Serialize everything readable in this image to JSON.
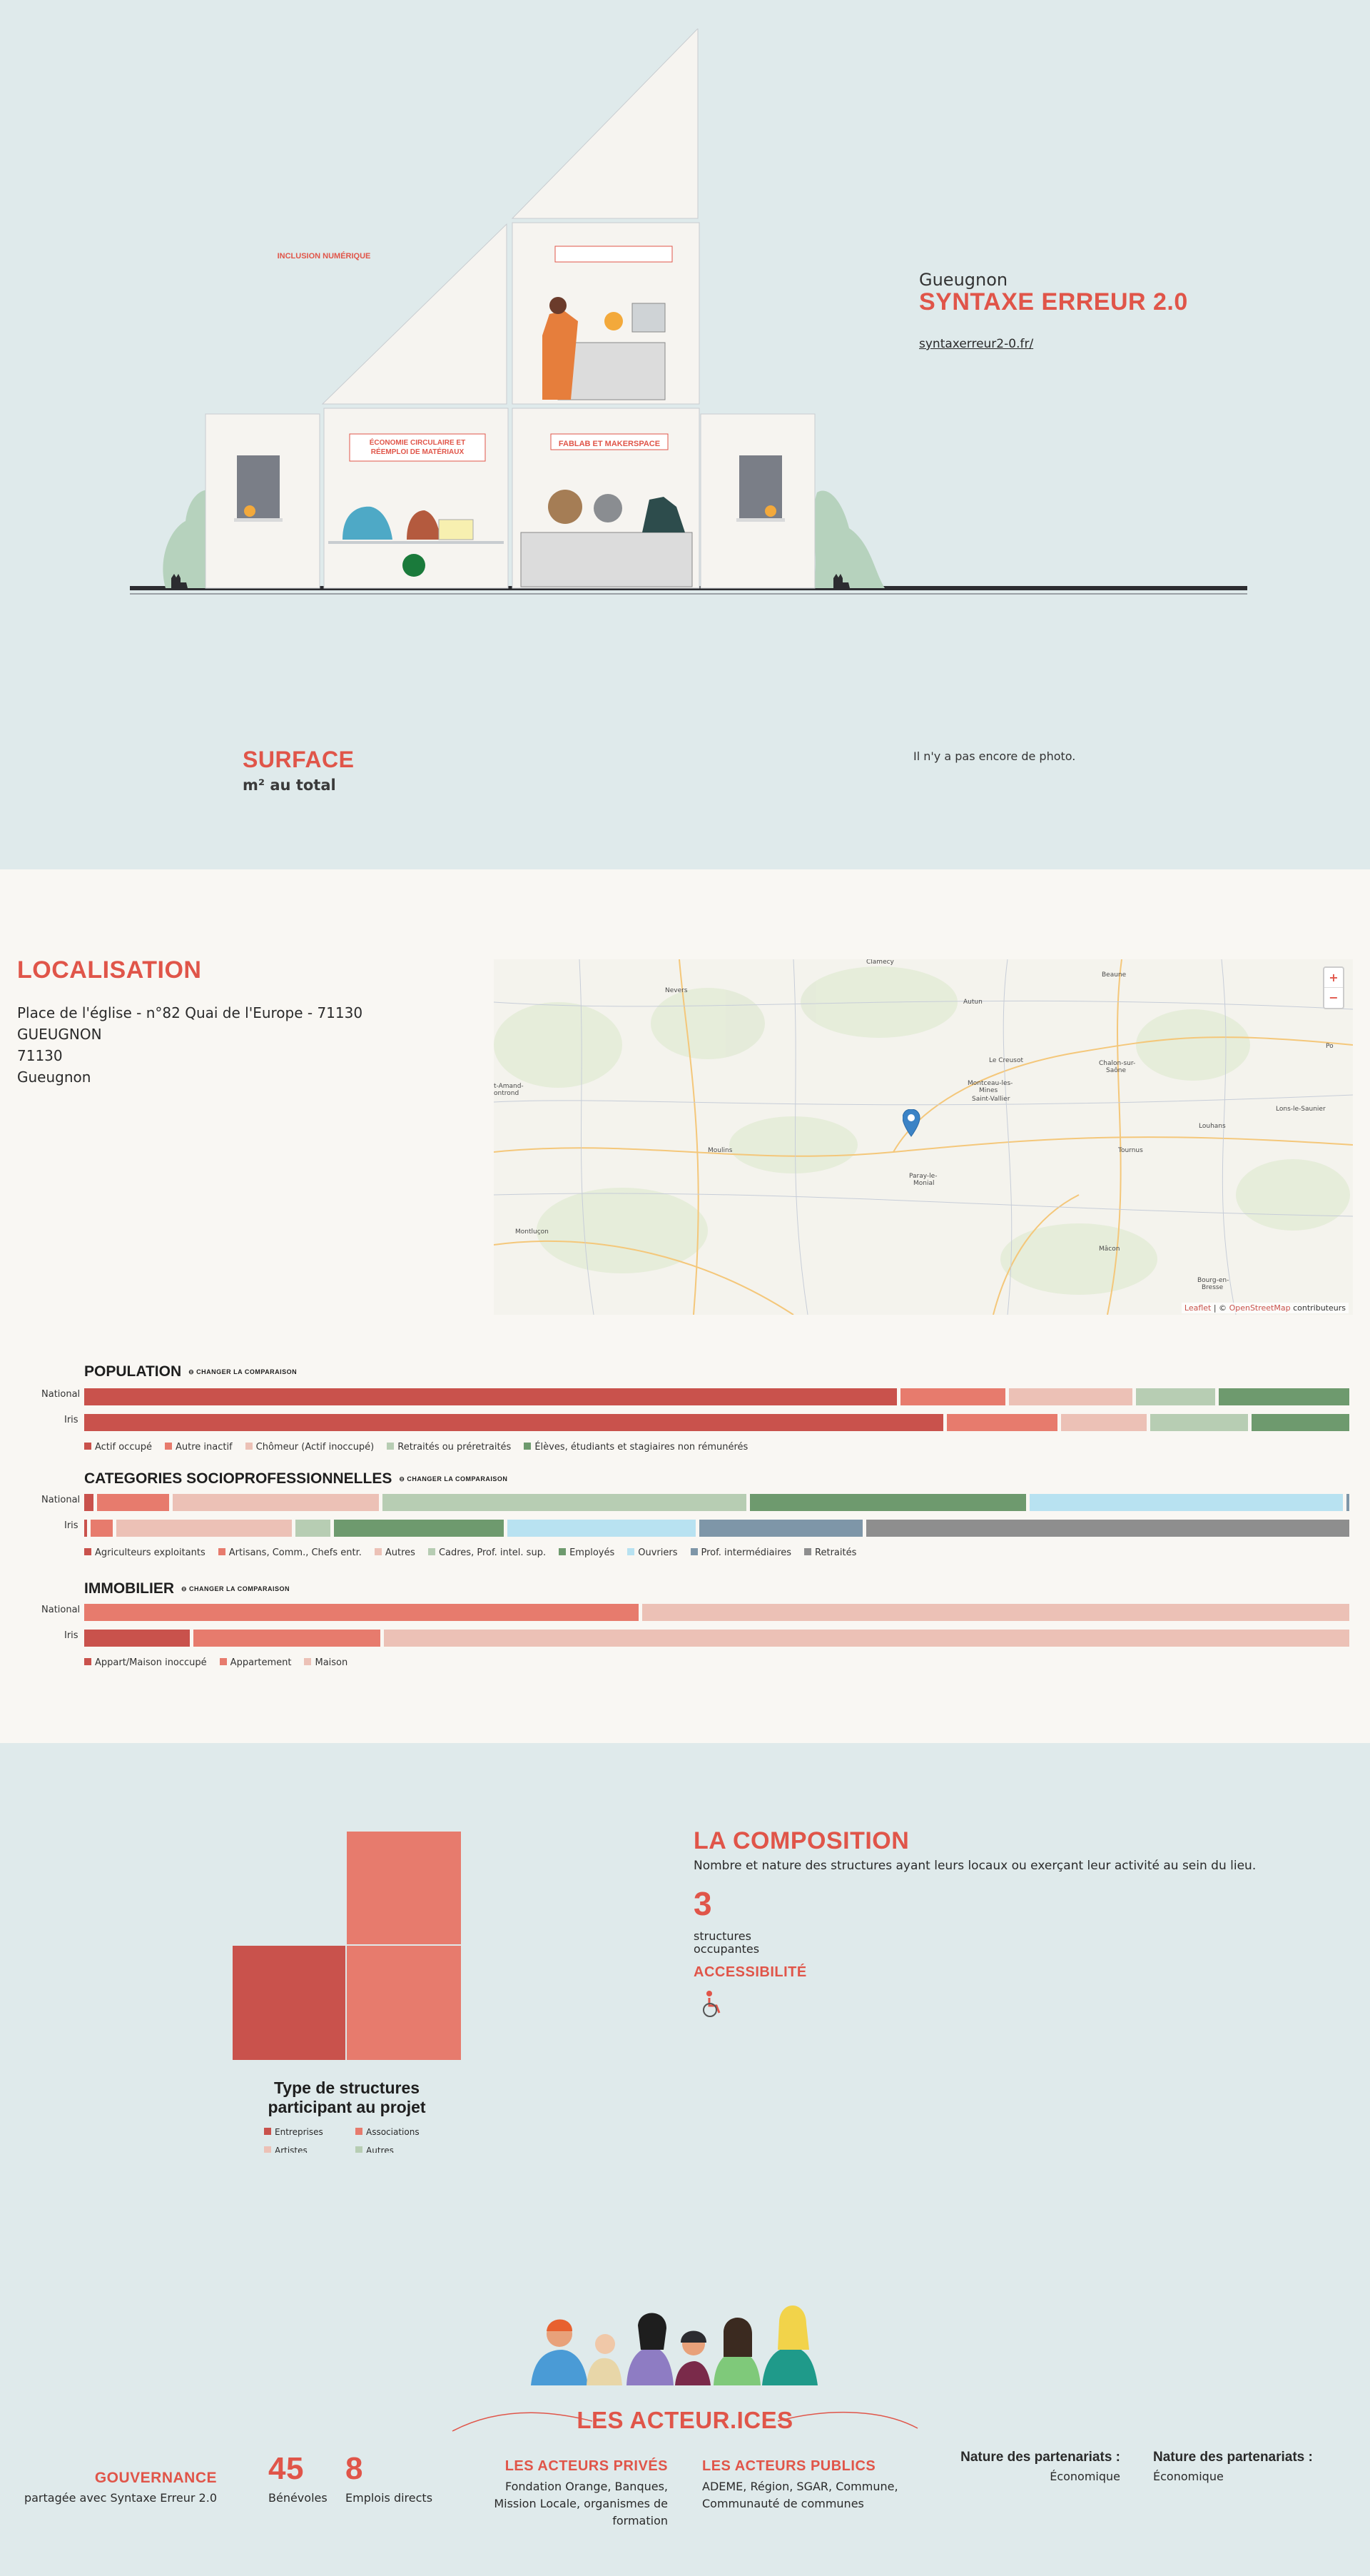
{
  "hero": {
    "city": "Gueugnon",
    "name": "SYNTAXE ERREUR 2.0",
    "website": "syntaxerreur2-0.fr/",
    "building_signs": {
      "inclusion": "INCLUSION NUMÉRIQUE",
      "economie": "ÉCONOMIE CIRCULAIRE ET RÉEMPLOI DE MATÉRIAUX",
      "fablab": "FABLAB ET MAKERSPACE"
    },
    "surface_title": "SURFACE",
    "surface_unit": "m² au total",
    "no_photo": "Il n'y a pas encore de photo."
  },
  "localisation": {
    "title": "LOCALISATION",
    "address_lines": [
      "Place de l'église - n°82 Quai de l'Europe - 71130",
      "GUEUGNON",
      "71130",
      "Gueugnon"
    ],
    "map": {
      "zoom_in": "+",
      "zoom_out": "−",
      "attribution_leaflet": "Leaflet",
      "attribution_sep": " | © ",
      "attribution_osm": "OpenStreetMap",
      "attribution_rest": " contributeurs",
      "towns": [
        "Nevers",
        "Autun",
        "Beaune",
        "Le Creusot",
        "Chalon-sur-Saône",
        "Montceau-les-Mines",
        "Saint-Vallier",
        "Lons-le-Saunier",
        "Louhans",
        "Tournus",
        "Moulins",
        "Paray-le-Monial",
        "Montluçon",
        "Mâcon",
        "Bourg-en-Bresse",
        "Saint-Amand-Montrond",
        "Clamecy",
        "Po"
      ]
    }
  },
  "comparisons": {
    "toggle_label": "⊖ CHANGER LA COMPARAISON",
    "row_national": "National",
    "row_iris": "Iris",
    "population": {
      "title": "POPULATION",
      "legend": [
        {
          "label": "Actif occupé",
          "color": "#c9524c"
        },
        {
          "label": "Autre inactif",
          "color": "#e77b6d"
        },
        {
          "label": "Chômeur (Actif inoccupé)",
          "color": "#ecc1b6"
        },
        {
          "label": "Retraités ou préretraités",
          "color": "#b7cdb3"
        },
        {
          "label": "Élèves, étudiants et stagiaires non rémunérés",
          "color": "#6e9a6e"
        }
      ],
      "national": [
        64,
        8.5,
        10,
        6.5,
        10.5
      ],
      "iris": [
        68,
        9,
        7,
        8,
        8
      ]
    },
    "csp": {
      "title": "CATEGORIES SOCIOPROFESSIONNELLES",
      "legend": [
        {
          "label": "Agriculteurs exploitants",
          "color": "#c9524c"
        },
        {
          "label": "Artisans, Comm., Chefs entr.",
          "color": "#e77b6d"
        },
        {
          "label": "Autres",
          "color": "#ecc1b6"
        },
        {
          "label": "Cadres, Prof. intel. sup.",
          "color": "#b7cdb3"
        },
        {
          "label": "Employés",
          "color": "#6e9a6e"
        },
        {
          "label": "Ouvriers",
          "color": "#b8e2f1"
        },
        {
          "label": "Prof. intermédiaires",
          "color": "#7e96a8"
        },
        {
          "label": "Retraités",
          "color": "#8e8e8e"
        }
      ],
      "national": [
        1,
        6,
        16.5,
        29,
        22,
        25,
        0.5,
        0
      ],
      "iris": [
        0.5,
        2,
        14,
        3,
        13.5,
        15,
        13,
        38
      ]
    },
    "immobilier": {
      "title": "IMMOBILIER",
      "legend": [
        {
          "label": "Appart/Maison inoccupé",
          "color": "#c9524c"
        },
        {
          "label": "Appartement",
          "color": "#e77b6d"
        },
        {
          "label": "Maison",
          "color": "#ecc1b6"
        }
      ],
      "national": [
        0,
        44,
        56
      ],
      "iris": [
        8.6,
        15,
        76.4
      ]
    }
  },
  "composition": {
    "title": "LA COMPOSITION",
    "description": "Nombre et nature des structures ayant leurs locaux ou exerçant leur activité au sein du lieu.",
    "count": "3",
    "count_label_1": "structures",
    "count_label_2": "occupantes",
    "accessibility_title": "ACCESSIBILITÉ",
    "accessibility_icon": "wheelchair-icon",
    "chart_title_1": "Type de structures",
    "chart_title_2": "participant au projet",
    "legend": [
      {
        "label": "Entreprises",
        "color": "#c9524c"
      },
      {
        "label": "Associations",
        "color": "#e77b6d"
      },
      {
        "label": "Artistes",
        "color": "#ecc1b6"
      },
      {
        "label": "Autres",
        "color": "#b7cdb3"
      }
    ]
  },
  "chart_data": {
    "type": "bar",
    "title": "POPULATION / CATEGORIES SOCIOPROFESSIONNELLES / IMMOBILIER",
    "categories": [
      "National",
      "Iris"
    ],
    "series": [
      {
        "name": "Actif occupé",
        "values": [
          64,
          68
        ]
      },
      {
        "name": "Autre inactif",
        "values": [
          8.5,
          9
        ]
      },
      {
        "name": "Chômeur (Actif inoccupé)",
        "values": [
          10,
          7
        ]
      },
      {
        "name": "Retraités ou préretraités",
        "values": [
          6.5,
          8
        ]
      },
      {
        "name": "Élèves, étudiants et stagiaires non rémunérés",
        "values": [
          10.5,
          8
        ]
      }
    ]
  },
  "acteurs": {
    "title": "LES ACTEUR.ICES",
    "gouvernance_title": "GOUVERNANCE",
    "gouvernance_text": "partagée avec Syntaxe Erreur 2.0",
    "benevoles_count": "45",
    "benevoles_label": "Bénévoles",
    "emplois_count": "8",
    "emplois_label": "Emplois directs",
    "prives_title": "LES ACTEURS PRIVÉS",
    "prives_text": "Fondation Orange, Banques, Mission Locale, organismes de formation",
    "publics_title": "LES ACTEURS PUBLICS",
    "publics_text": "ADEME, Région, SGAR, Commune, Communauté de communes",
    "partenariats_1_title": "Nature des partenariats :",
    "partenariats_1_value": "Économique",
    "partenariats_2_title": "Nature des partenariats :",
    "partenariats_2_value": "Économique"
  }
}
